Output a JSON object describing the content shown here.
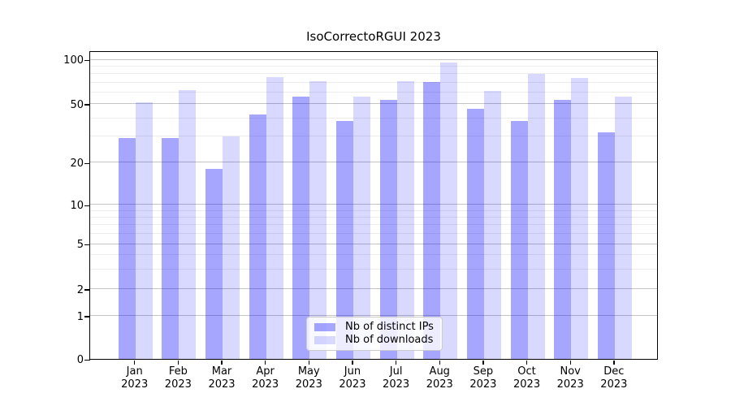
{
  "chart_data": {
    "type": "bar",
    "title": "IsoCorrectoRGUI 2023",
    "categories": [
      "Jan 2023",
      "Feb 2023",
      "Mar 2023",
      "Apr 2023",
      "May 2023",
      "Jun 2023",
      "Jul 2023",
      "Aug 2023",
      "Sep 2023",
      "Oct 2023",
      "Nov 2023",
      "Dec 2023"
    ],
    "series": [
      {
        "name": "Nb of distinct IPs",
        "color": "rgba(0,0,255,0.35)",
        "color_hex": "#a6a6ff",
        "values": [
          29,
          29,
          18,
          42,
          56,
          38,
          53,
          70,
          46,
          38,
          53,
          32
        ]
      },
      {
        "name": "Nb of downloads",
        "color": "rgba(0,0,255,0.15)",
        "color_hex": "#d9d9ff",
        "values": [
          51,
          62,
          30,
          76,
          71,
          56,
          71,
          95,
          61,
          80,
          75,
          56
        ]
      }
    ],
    "xlabel": "",
    "ylabel": "",
    "yscale": "log-like",
    "y_major_ticks": [
      0,
      1,
      2,
      5,
      10,
      20,
      50,
      100
    ],
    "y_minor_ticks": [
      3,
      4,
      6,
      7,
      8,
      9,
      30,
      40,
      60,
      70,
      80,
      90
    ],
    "ylim": [
      0,
      115
    ],
    "grid": "horizontal major and minor gridlines",
    "legend_position": "lower center inside plot",
    "colors": {
      "grid_major": "#c4c4c4",
      "grid_minor": "#ececec",
      "axis": "#000000",
      "background": "#ffffff"
    }
  }
}
